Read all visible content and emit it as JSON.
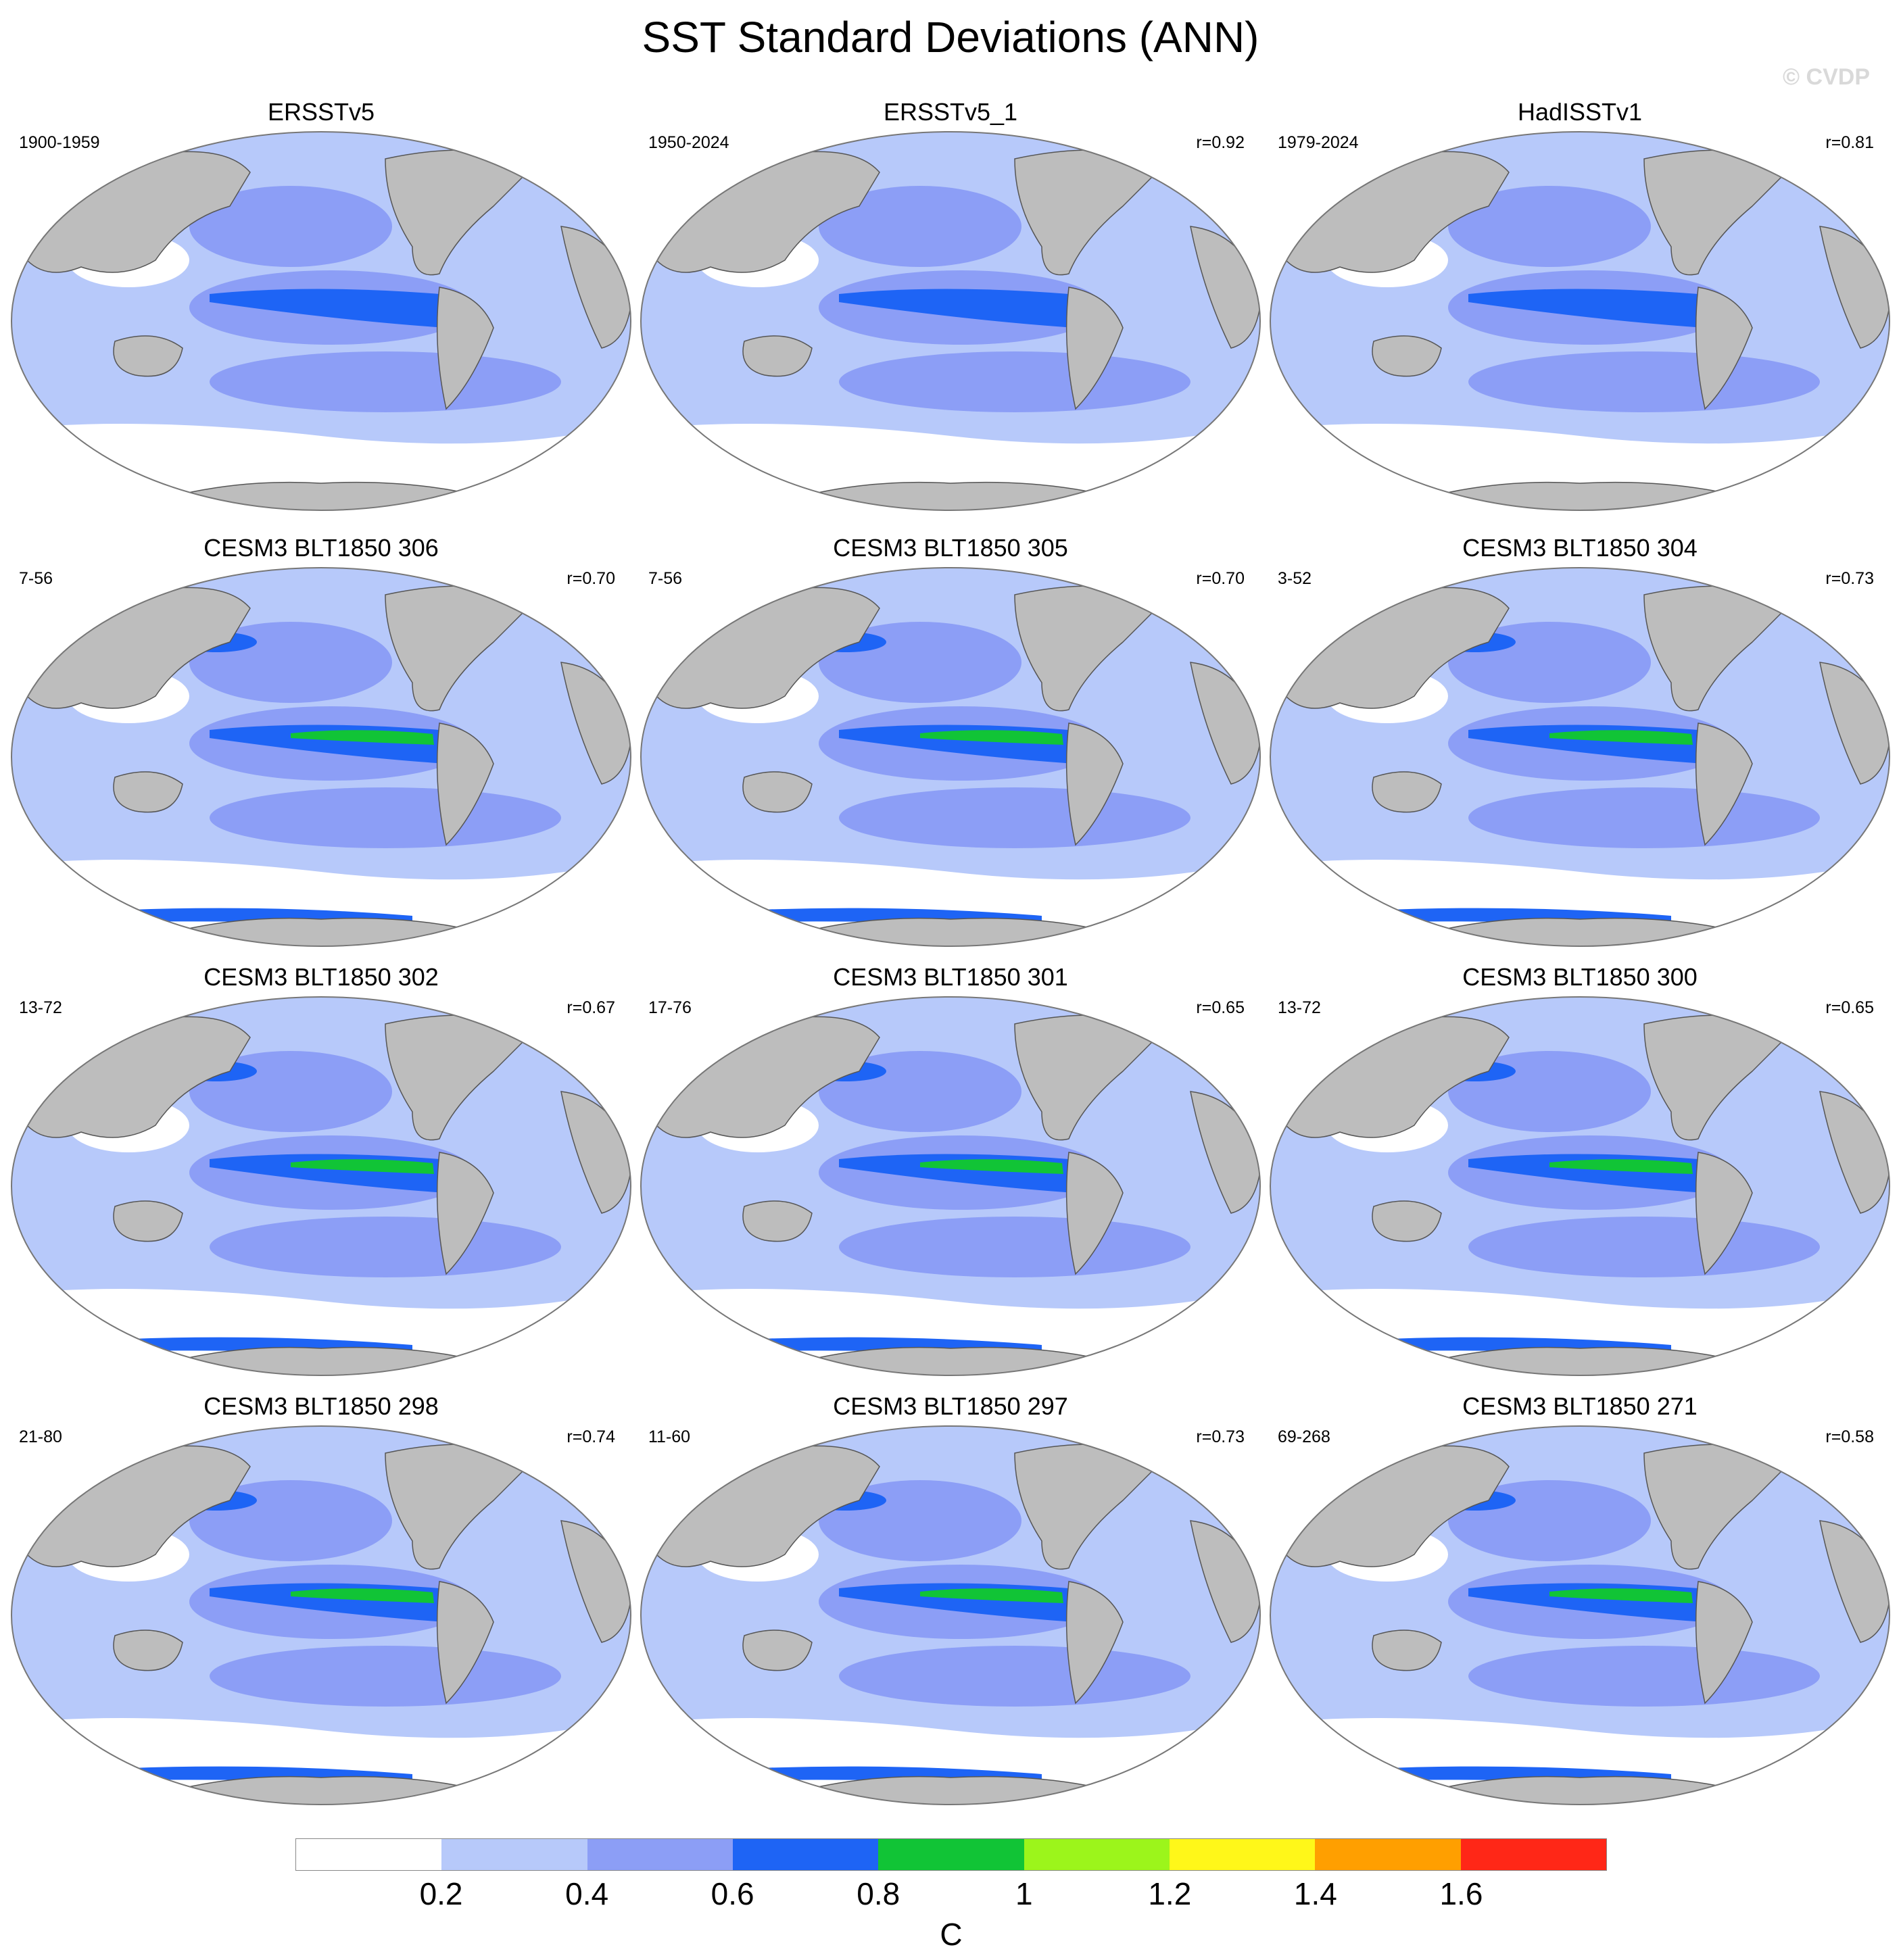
{
  "title": "SST Standard Deviations (ANN)",
  "copyright": "© CVDP",
  "unit": "C",
  "colorbar": {
    "colors": [
      "#ffffff",
      "#b7c9fa",
      "#8c9ef6",
      "#1e64f5",
      "#11c436",
      "#9cf51b",
      "#fff719",
      "#ff9f00",
      "#ff2717"
    ],
    "ticks": [
      "0.2",
      "0.4",
      "0.6",
      "0.8",
      "1",
      "1.2",
      "1.4",
      "1.6"
    ]
  },
  "panels": [
    {
      "title": "ERSSTv5",
      "period": "1900-1959",
      "r": ""
    },
    {
      "title": "ERSSTv5_1",
      "period": "1950-2024",
      "r": "r=0.92"
    },
    {
      "title": "HadISSTv1",
      "period": "1979-2024",
      "r": "r=0.81"
    },
    {
      "title": "CESM3 BLT1850 306",
      "period": "7-56",
      "r": "r=0.70"
    },
    {
      "title": "CESM3 BLT1850 305",
      "period": "7-56",
      "r": "r=0.70"
    },
    {
      "title": "CESM3 BLT1850 304",
      "period": "3-52",
      "r": "r=0.73"
    },
    {
      "title": "CESM3 BLT1850 302",
      "period": "13-72",
      "r": "r=0.67"
    },
    {
      "title": "CESM3 BLT1850 301",
      "period": "17-76",
      "r": "r=0.65"
    },
    {
      "title": "CESM3 BLT1850 300",
      "period": "13-72",
      "r": "r=0.65"
    },
    {
      "title": "CESM3 BLT1850 298",
      "period": "21-80",
      "r": "r=0.74"
    },
    {
      "title": "CESM3 BLT1850 297",
      "period": "11-60",
      "r": "r=0.73"
    },
    {
      "title": "CESM3 BLT1850 271",
      "period": "69-268",
      "r": "r=0.58"
    }
  ]
}
